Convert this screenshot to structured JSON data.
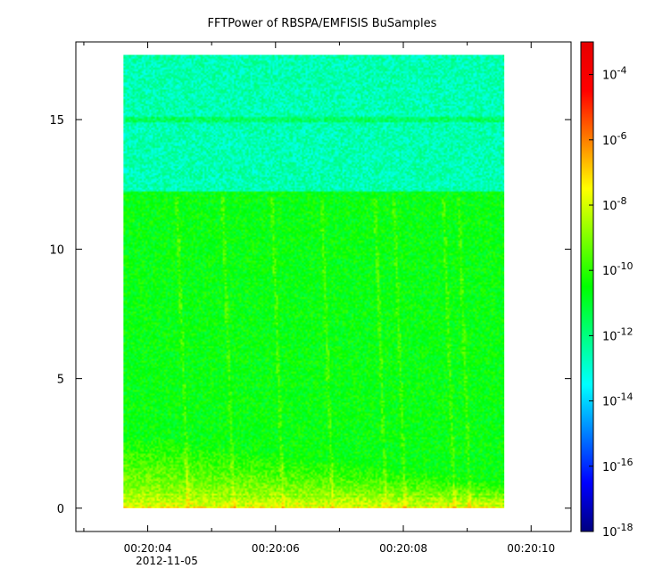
{
  "chart_data": {
    "type": "heatmap",
    "title": "FFTPower of RBSPA/EMFISIS  BuSamples",
    "xlabel": "",
    "ylabel": "",
    "x_range": [
      "00:20:02.875",
      "00:20:10.625"
    ],
    "x_ticks": [
      "00:20:04",
      "00:20:06",
      "00:20:08",
      "00:20:10"
    ],
    "x_minor_ticks": [
      "00:20:03",
      "00:20:05",
      "00:20:07",
      "00:20:09"
    ],
    "x_date_label": "2012-11-05",
    "data_x_range": [
      "00:20:03.62",
      "00:20:09.58"
    ],
    "y_range": [
      -0.9,
      18.0
    ],
    "y_ticks": [
      0,
      5,
      10,
      15
    ],
    "data_y_range": [
      0,
      17.5
    ],
    "colorbar": {
      "scale": "log",
      "range": [
        1e-18,
        0.001
      ],
      "tick_exponents": [
        -18,
        -16,
        -14,
        -12,
        -10,
        -8,
        -6,
        -4
      ],
      "tick_base": "10",
      "colors": [
        "#00007f",
        "#0000ff",
        "#007fff",
        "#00ffff",
        "#00ff7f",
        "#00ff00",
        "#7fff00",
        "#ffff00",
        "#ff7f00",
        "#ff0000",
        "#e60000"
      ]
    },
    "features": {
      "upper_band_level_log10": -12.6,
      "lower_band_level_log10": -10.6,
      "band_boundary_y": 12.2,
      "horizontal_line_y": 15.0,
      "low_frequency_enhancement_log10": -8.5
    }
  }
}
